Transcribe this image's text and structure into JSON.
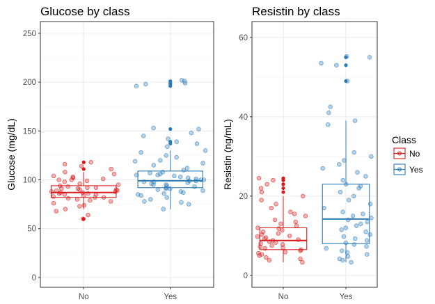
{
  "colors": {
    "No": "#d7191c",
    "Yes": "#2c7bb6",
    "grid_major": "#ebebeb",
    "grid_minor": "#f5f5f5",
    "panel_border": "#333333"
  },
  "legend": {
    "title": "Class",
    "items": [
      "No",
      "Yes"
    ],
    "position": "right"
  },
  "chart_data": [
    {
      "type": "boxplot",
      "title": "Glucose by class",
      "xlabel": "",
      "ylabel": "Glucose (mg/dL)",
      "categories": [
        "No",
        "Yes"
      ],
      "ylim": [
        -10,
        262
      ],
      "yticks": [
        0,
        50,
        100,
        150,
        200,
        250
      ],
      "grid": true,
      "boxes": [
        {
          "group": "No",
          "q1": 82,
          "median": 87,
          "q3": 94,
          "whisker_low": 70,
          "whisker_high": 108,
          "outliers": [
            60,
            111,
            118
          ]
        },
        {
          "group": "Yes",
          "q1": 92,
          "median": 99,
          "q3": 109,
          "whisker_low": 70,
          "whisker_high": 130,
          "outliers": [
            137,
            139,
            152,
            196,
            198,
            199,
            201
          ]
        }
      ],
      "points": {
        "No": [
          60,
          64,
          68,
          70,
          73,
          74,
          76,
          78,
          79,
          80,
          81,
          82,
          82,
          83,
          84,
          85,
          85,
          86,
          86,
          87,
          87,
          88,
          88,
          89,
          89,
          90,
          90,
          91,
          91,
          92,
          92,
          93,
          94,
          95,
          96,
          98,
          99,
          100,
          100,
          101,
          102,
          103,
          104,
          106,
          108,
          111,
          114,
          116,
          118
        ],
        "Yes": [
          70,
          75,
          77,
          78,
          80,
          82,
          84,
          85,
          86,
          87,
          88,
          89,
          90,
          91,
          91,
          92,
          93,
          94,
          95,
          95,
          96,
          97,
          98,
          98,
          99,
          99,
          100,
          100,
          101,
          102,
          103,
          104,
          105,
          105,
          106,
          107,
          108,
          110,
          112,
          115,
          117,
          119,
          120,
          123,
          125,
          128,
          130,
          134,
          137,
          139,
          142,
          145,
          148,
          152,
          153,
          196,
          198,
          199,
          201,
          202
        ]
      }
    },
    {
      "type": "boxplot",
      "title": "Resistin by class",
      "xlabel": "",
      "ylabel": "Resistin (ng/mL)",
      "categories": [
        "No",
        "Yes"
      ],
      "ylim": [
        -3,
        64
      ],
      "yticks": [
        0,
        20,
        40,
        60
      ],
      "grid": true,
      "boxes": [
        {
          "group": "No",
          "q1": 6.5,
          "median": 8.8,
          "q3": 12,
          "whisker_low": 3.3,
          "whisker_high": 20,
          "outliers": [
            21,
            22,
            23,
            24,
            24.5
          ]
        },
        {
          "group": "Yes",
          "q1": 8,
          "median": 14.2,
          "q3": 23,
          "whisker_low": 3.3,
          "whisker_high": 39,
          "outliers": [
            49,
            53,
            55,
            55
          ]
        }
      ],
      "points": {
        "No": [
          3.3,
          3.8,
          4.2,
          4.5,
          5,
          5.3,
          5.6,
          5.9,
          6.2,
          6.5,
          6.8,
          7,
          7.2,
          7.5,
          7.8,
          8,
          8.3,
          8.5,
          8.8,
          9,
          9.2,
          9.5,
          9.8,
          10,
          10.3,
          10.6,
          11,
          11.4,
          11.8,
          12,
          12.5,
          13,
          13.5,
          14,
          15,
          15.5,
          16,
          17,
          18,
          19,
          20,
          21,
          22,
          23,
          24,
          24.5
        ],
        "Yes": [
          3.3,
          3.8,
          4.2,
          4.8,
          5.3,
          5.8,
          6.2,
          6.8,
          7.3,
          7.8,
          8.2,
          8.8,
          9.3,
          9.8,
          10.3,
          11,
          11.5,
          12,
          12.5,
          13,
          13.5,
          14,
          14.5,
          15,
          15.5,
          16,
          17,
          18,
          19,
          20,
          21,
          22,
          22.5,
          23,
          24,
          25,
          26,
          27,
          28,
          29,
          30,
          31,
          38,
          39,
          41,
          42.5,
          49,
          53,
          53.5,
          55,
          55.2
        ]
      }
    }
  ]
}
